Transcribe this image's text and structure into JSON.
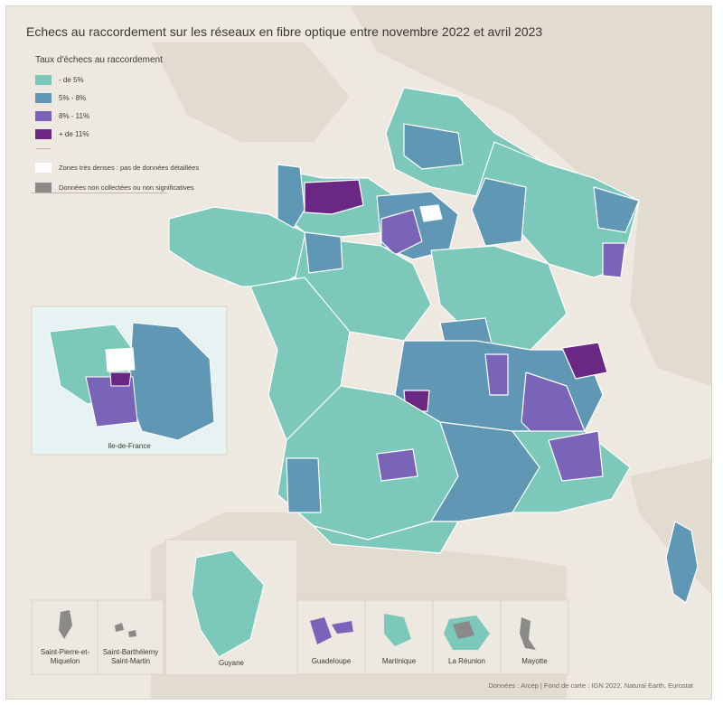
{
  "title": "Echecs au raccordement sur les réseaux en fibre optique entre novembre 2022 et avril 2023",
  "legend": {
    "title": "Taux d'échecs au raccordement",
    "classes": [
      {
        "label": "- de 5%",
        "color": "#7cc9bb"
      },
      {
        "label": "5% - 8%",
        "color": "#5f97b5"
      },
      {
        "label": "8% - 11%",
        "color": "#7a64b8"
      },
      {
        "label": "+ de 11%",
        "color": "#6a2783"
      }
    ],
    "dense_zone": {
      "label": "Zones très denses : pas de données détaillées",
      "color": "#ffffff"
    },
    "no_data": {
      "label": "Données non collectées ou non significatives",
      "color": "#8a8a88"
    }
  },
  "insets": {
    "idf": "Ile-de-France",
    "spm": "Saint-Pierre-et-Miquelon",
    "sbsm": "Saint-Barthélemy Saint-Martin",
    "guyane": "Guyane",
    "guadeloupe": "Guadeloupe",
    "martinique": "Martinique",
    "reunion": "La Réunion",
    "mayotte": "Mayotte"
  },
  "source": "Données : Arcep | Fond de carte : IGN 2022, Natural Earth, Eurostat",
  "colors": {
    "background": "#eee9e0",
    "land": "#e2dbcf",
    "sea": "#eee9e0",
    "border": "#ffffff"
  }
}
